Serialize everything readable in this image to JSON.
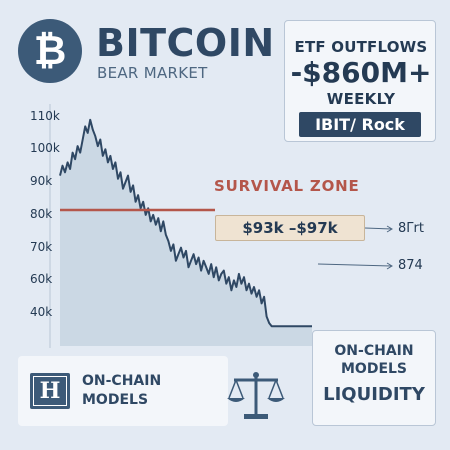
{
  "header": {
    "logo_glyph": "₿",
    "logo_icon": "bitcoin-icon",
    "title": "BITCOIN",
    "subtitle": "BEAR MARKET"
  },
  "etf_panel": {
    "heading": "ETF OUTFLOWS",
    "amount": "-$860M+",
    "period": "WEEKLY",
    "tag": "IBIT/ Rock"
  },
  "annotations": {
    "zone_label": "SURVIVAL ZONE",
    "range_label": "$93k –$97k",
    "side_value_1": "8Γrt",
    "side_value_2": "874"
  },
  "bottom_left": {
    "icon": "shield-h-icon",
    "icon_glyph": "H",
    "line1": "ON-CHAIN",
    "line2": "MODELS"
  },
  "bottom_middle": {
    "icon": "balance-scale-icon"
  },
  "bottom_right": {
    "line1": "ON-CHAIN",
    "line2": "MODELS",
    "line3": "LIQUIDITY"
  },
  "colors": {
    "primary": "#2f4864",
    "accent_red": "#b4564a",
    "fill": "#c3d1df",
    "line": "#2f4864"
  },
  "chart_data": {
    "type": "area",
    "title": "",
    "xlabel": "",
    "ylabel": "",
    "ylim": [
      40,
      112
    ],
    "y_ticks": [
      110,
      100,
      90,
      80,
      70,
      60,
      40
    ],
    "y_tick_labels": [
      "110k",
      "100k",
      "90k",
      "80k",
      "70k",
      "60k",
      "40k"
    ],
    "grid": false,
    "reference_line": {
      "value": 81.5,
      "color": "#b4564a"
    },
    "x": [
      0,
      1,
      2,
      3,
      4,
      5,
      6,
      7,
      8,
      9,
      10,
      11,
      12,
      13,
      14,
      15,
      16,
      17,
      18,
      19,
      20,
      21,
      22,
      23,
      24,
      25,
      26,
      27,
      28,
      29,
      30,
      31,
      32,
      33,
      34,
      35,
      36,
      37,
      38,
      39,
      40,
      41,
      42,
      43,
      44,
      45,
      46,
      47,
      48,
      49,
      50,
      51,
      52,
      53,
      54,
      55,
      56,
      57,
      58,
      59,
      60,
      61,
      62,
      63,
      64,
      65,
      66,
      67,
      68,
      69,
      70,
      71,
      72,
      73,
      74,
      75,
      76,
      77,
      78,
      79,
      80,
      81,
      82,
      83,
      84,
      85,
      86,
      87,
      88,
      89,
      90,
      91,
      92,
      93,
      94,
      95,
      96,
      97,
      98,
      99,
      100
    ],
    "series": [
      {
        "values": [
          92,
          95,
          93,
          96,
          94,
          99,
          97,
          101,
          99,
          103,
          107,
          105,
          109,
          106,
          104,
          101,
          103,
          98,
          100,
          96,
          98,
          94,
          96,
          91,
          93,
          88,
          90,
          92,
          87,
          89,
          84,
          86,
          82,
          84,
          80,
          82,
          78,
          80,
          77,
          79,
          75,
          78,
          74,
          72,
          69,
          71,
          66,
          68,
          70,
          67,
          69,
          64,
          66,
          68,
          65,
          67,
          63,
          66,
          64,
          62,
          65,
          61,
          64,
          60,
          62,
          63,
          59,
          61,
          57,
          60,
          58,
          62,
          59,
          61,
          57,
          59,
          56,
          58,
          55,
          57,
          53,
          55,
          49,
          47,
          46,
          46,
          46,
          46,
          46,
          46,
          46,
          46,
          46,
          46,
          46,
          46,
          46,
          46,
          46,
          46,
          46
        ]
      }
    ]
  }
}
